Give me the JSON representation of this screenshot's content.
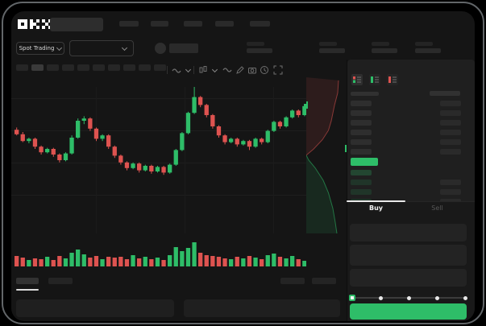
{
  "window": {
    "brand": "OKX"
  },
  "market_header": {
    "market_type_label": "Spot Trading"
  },
  "trade_panel": {
    "buy_tab": "Buy",
    "sell_tab": "Sell",
    "slider_stops": [
      0,
      25,
      50,
      75,
      100
    ],
    "slider_value": 0
  },
  "order_book": {
    "view_icons": [
      "book-combined-icon",
      "book-bids-icon",
      "book-asks-icon"
    ],
    "ask_row_count": 6,
    "bid_row_count": 4
  },
  "colors": {
    "green": "#2ebd68",
    "red": "#de5350",
    "surface": "#151515",
    "buy_text": "#f2f2f2",
    "sell_text": "#565656"
  },
  "chart_data": [
    {
      "type": "candlestick",
      "title": "",
      "axes_visible": false,
      "ohlc": [
        [
          62,
          64,
          57,
          58
        ],
        [
          58,
          60,
          51,
          52
        ],
        [
          52,
          55,
          50,
          54
        ],
        [
          54,
          55,
          45,
          47
        ],
        [
          47,
          48,
          40,
          42
        ],
        [
          42,
          46,
          41,
          45
        ],
        [
          45,
          46,
          38,
          40
        ],
        [
          40,
          41,
          33,
          35
        ],
        [
          35,
          42,
          34,
          41
        ],
        [
          41,
          57,
          40,
          55
        ],
        [
          55,
          72,
          54,
          70
        ],
        [
          70,
          74,
          67,
          72
        ],
        [
          72,
          73,
          61,
          63
        ],
        [
          63,
          64,
          52,
          54
        ],
        [
          54,
          58,
          52,
          57
        ],
        [
          57,
          58,
          45,
          47
        ],
        [
          47,
          48,
          37,
          39
        ],
        [
          39,
          40,
          31,
          33
        ],
        [
          33,
          34,
          26,
          28
        ],
        [
          28,
          33,
          27,
          32
        ],
        [
          32,
          33,
          24,
          26
        ],
        [
          26,
          31,
          25,
          30
        ],
        [
          30,
          31,
          23,
          25
        ],
        [
          25,
          30,
          24,
          29
        ],
        [
          29,
          30,
          22,
          24
        ],
        [
          24,
          32,
          23,
          31
        ],
        [
          31,
          45,
          30,
          44
        ],
        [
          44,
          60,
          43,
          59
        ],
        [
          59,
          78,
          58,
          77
        ],
        [
          77,
          100,
          76,
          91
        ],
        [
          91,
          92,
          82,
          84
        ],
        [
          84,
          85,
          73,
          75
        ],
        [
          75,
          76,
          63,
          65
        ],
        [
          65,
          66,
          55,
          57
        ],
        [
          57,
          58,
          49,
          51
        ],
        [
          51,
          55,
          50,
          54
        ],
        [
          54,
          55,
          47,
          49
        ],
        [
          49,
          53,
          48,
          52
        ],
        [
          52,
          53,
          44,
          47
        ],
        [
          47,
          55,
          46,
          54
        ],
        [
          54,
          55,
          49,
          51
        ],
        [
          51,
          62,
          50,
          61
        ],
        [
          61,
          70,
          60,
          69
        ],
        [
          69,
          70,
          63,
          65
        ],
        [
          65,
          74,
          64,
          73
        ],
        [
          73,
          80,
          72,
          79
        ],
        [
          79,
          80,
          73,
          75
        ],
        [
          75,
          84,
          74,
          83
        ]
      ],
      "volume": [
        13,
        11,
        8,
        10,
        9,
        12,
        8,
        13,
        10,
        17,
        21,
        15,
        11,
        13,
        9,
        12,
        11,
        12,
        9,
        14,
        10,
        12,
        9,
        11,
        8,
        14,
        24,
        19,
        23,
        30,
        17,
        14,
        13,
        12,
        10,
        9,
        12,
        10,
        13,
        11,
        9,
        14,
        16,
        12,
        10,
        13,
        9,
        7
      ]
    },
    {
      "type": "area",
      "title": "",
      "orientation": "vertical-depth",
      "series": [
        {
          "name": "asks",
          "points": [
            [
              0.8,
              0.02
            ],
            [
              0.78,
              0.1
            ],
            [
              0.7,
              0.18
            ],
            [
              0.62,
              0.28
            ],
            [
              0.55,
              0.34
            ],
            [
              0.4,
              0.4
            ],
            [
              0.18,
              0.46
            ],
            [
              0.04,
              0.49
            ],
            [
              0.0,
              0.5
            ]
          ]
        },
        {
          "name": "bids",
          "points": [
            [
              0.0,
              0.5
            ],
            [
              0.06,
              0.53
            ],
            [
              0.22,
              0.58
            ],
            [
              0.42,
              0.66
            ],
            [
              0.55,
              0.74
            ],
            [
              0.66,
              0.84
            ],
            [
              0.72,
              0.93
            ],
            [
              0.76,
              1.0
            ]
          ]
        }
      ]
    }
  ]
}
